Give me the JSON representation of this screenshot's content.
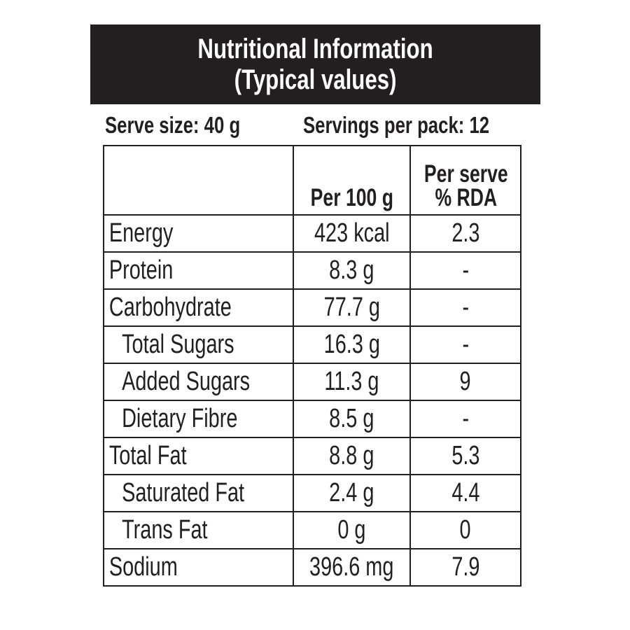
{
  "header": {
    "title_line1": "Nutritional Information",
    "title_line2": "(Typical values)"
  },
  "serving": {
    "serve_size": "Serve size: 40 g",
    "servings_per_pack": "Servings per pack: 12"
  },
  "table": {
    "columns": [
      "",
      "Per 100 g",
      "Per serve\n% RDA"
    ],
    "col_per100": "Per 100 g",
    "col_rda_line1": "Per serve",
    "col_rda_line2": "% RDA",
    "rows": [
      {
        "name": "Energy",
        "per100": "423 kcal",
        "rda": "2.3"
      },
      {
        "name": "Protein",
        "per100": "8.3 g",
        "rda": "-"
      },
      {
        "name": "Carbohydrate",
        "per100": "77.7 g",
        "rda": "-"
      },
      {
        "name": "Total Sugars",
        "per100": "16.3 g",
        "rda": "-"
      },
      {
        "name": "Added Sugars",
        "per100": "11.3 g",
        "rda": "9"
      },
      {
        "name": "Dietary Fibre",
        "per100": "8.5 g",
        "rda": "-"
      },
      {
        "name": "Total Fat",
        "per100": "8.8 g",
        "rda": "5.3"
      },
      {
        "name": "Saturated Fat",
        "per100": "2.4 g",
        "rda": "4.4"
      },
      {
        "name": "Trans Fat",
        "per100": "0 g",
        "rda": "0"
      },
      {
        "name": "Sodium",
        "per100": "396.6 mg",
        "rda": "7.9"
      }
    ]
  },
  "colors": {
    "header_bg": "#231f20",
    "header_text": "#ffffff",
    "text": "#231f20"
  }
}
